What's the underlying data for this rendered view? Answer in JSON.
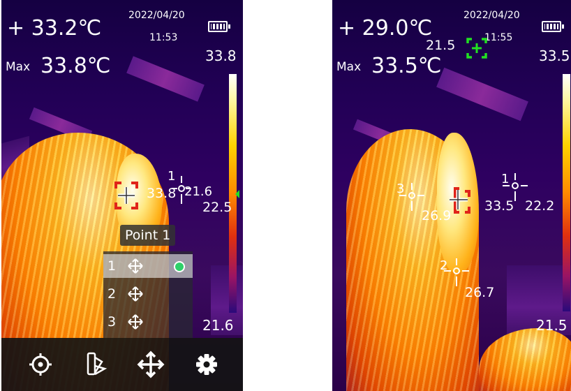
{
  "left": {
    "center_temp": "+ 33.2℃",
    "date": "2022/04/20",
    "time": "11:53",
    "max_label": "Max",
    "max_value": "33.8℃",
    "scale_max": "33.8",
    "scale_min": "21.6",
    "spot_center_value": "33.8",
    "point1_number": "1",
    "point1_value": "21.6",
    "marker_value": "22.5",
    "tooltip": "Point 1",
    "menu_items": [
      {
        "number": "1",
        "icon": "move-icon",
        "selected": true
      },
      {
        "number": "2",
        "icon": "move-icon",
        "selected": false
      },
      {
        "number": "3",
        "icon": "move-icon",
        "selected": false
      }
    ],
    "toolbar": [
      {
        "name": "target-button",
        "icon": "target-icon"
      },
      {
        "name": "palette-button",
        "icon": "palette-icon"
      },
      {
        "name": "move-button",
        "icon": "move-icon"
      },
      {
        "name": "settings-button",
        "icon": "gear-icon"
      }
    ]
  },
  "right": {
    "center_temp": "+ 29.0℃",
    "date": "2022/04/20",
    "time": "11:55",
    "max_label": "Max",
    "max_value": "33.5℃",
    "scale_max": "33.5",
    "scale_min": "21.5",
    "min_marker_value": "21.5",
    "center_value": "26.9",
    "hot_value": "33.5",
    "point1_number": "1",
    "point1_value": "22.2",
    "point2_number": "2",
    "point2_value": "26.7",
    "point3_number": "3"
  },
  "colors": {
    "hot_marker": "#e0241a",
    "cold_marker": "#22e022",
    "selected_dot": "#2fd06a"
  }
}
